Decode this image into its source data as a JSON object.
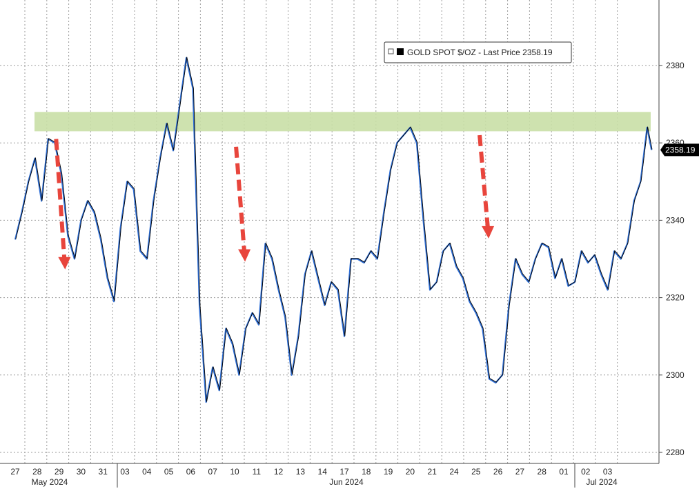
{
  "chart_data": {
    "type": "line",
    "title": "",
    "legend": {
      "label": "GOLD SPOT $/OZ - Last Price 2358.19",
      "position": "top-right"
    },
    "last_price": "2358.19",
    "colors": {
      "line_dark": "#000000",
      "line_blue": "#2f6fd6",
      "band": "#c9dfa6",
      "arrow": "#e8453c",
      "grid": "#9a9a9a"
    },
    "ylim": [
      2276,
      2400
    ],
    "y_ticks": [
      2280,
      2300,
      2320,
      2340,
      2360,
      2380
    ],
    "grid": "dotted",
    "x_tick_labels": [
      "27",
      "28",
      "29",
      "30",
      "31",
      "03",
      "04",
      "05",
      "06",
      "07",
      "10",
      "11",
      "12",
      "13",
      "14",
      "17",
      "18",
      "19",
      "20",
      "21",
      "24",
      "25",
      "26",
      "27",
      "28",
      "01",
      "02",
      "03"
    ],
    "x_month_labels": [
      "May 2024",
      "Jun 2024",
      "Jul 2024"
    ],
    "resistance_band": {
      "low": 2363,
      "high": 2368
    },
    "arrows": [
      {
        "from_day": 1.3,
        "from": 2361,
        "to": 2328
      },
      {
        "from_day": 9.5,
        "from": 2359,
        "to": 2330
      },
      {
        "from_day": 20.6,
        "from": 2362,
        "to": 2336
      }
    ],
    "series": [
      {
        "x_day": [
          0,
          0.3,
          0.6,
          0.9,
          1.2,
          1.5,
          1.8,
          2.1,
          2.4,
          2.7,
          3.0,
          3.3,
          3.6,
          3.9,
          4.2,
          4.5,
          4.8,
          5.1,
          5.4,
          5.7,
          6.0,
          6.3,
          6.6,
          6.9,
          7.2,
          7.5,
          7.8,
          8.1,
          8.4,
          8.7,
          9.0,
          9.3,
          9.6,
          9.9,
          10.2,
          10.5,
          10.8,
          11.1,
          11.4,
          11.7,
          12.0,
          12.3,
          12.6,
          12.9,
          13.2,
          13.5,
          13.8,
          14.1,
          14.4,
          14.7,
          15.0,
          15.3,
          15.6,
          15.9,
          16.2,
          16.5,
          16.8,
          17.1,
          17.4,
          17.7,
          18.0,
          18.3,
          18.6,
          18.9,
          19.2,
          19.5,
          19.8,
          20.1,
          20.4,
          20.7,
          21.0,
          21.3,
          21.6,
          21.9,
          22.2,
          22.5,
          22.8,
          23.1,
          23.4,
          23.7,
          24.0,
          24.3,
          24.6,
          24.9,
          25.2,
          25.5,
          25.8,
          26.1,
          26.4,
          26.7,
          27.0,
          27.3,
          27.6,
          27.9,
          28.2,
          28.5,
          28.8,
          29.0
        ],
        "values": [
          2335,
          2342,
          2350,
          2356,
          2345,
          2361,
          2360,
          2352,
          2336,
          2330,
          2340,
          2345,
          2342,
          2335,
          2325,
          2319,
          2338,
          2350,
          2348,
          2332,
          2330,
          2345,
          2356,
          2365,
          2358,
          2370,
          2382,
          2374,
          2318,
          2293,
          2302,
          2296,
          2312,
          2308,
          2300,
          2312,
          2316,
          2313,
          2334,
          2330,
          2322,
          2315,
          2300,
          2310,
          2326,
          2332,
          2325,
          2318,
          2324,
          2322,
          2310,
          2330,
          2330,
          2329,
          2332,
          2330,
          2342,
          2353,
          2360,
          2362,
          2364,
          2360,
          2340,
          2322,
          2324,
          2332,
          2334,
          2328,
          2325,
          2319,
          2316,
          2312,
          2299,
          2298,
          2300,
          2318,
          2330,
          2326,
          2324,
          2330,
          2334,
          2333,
          2325,
          2330,
          2323,
          2324,
          2332,
          2329,
          2331,
          2326,
          2322,
          2332,
          2330,
          2334,
          2345,
          2350,
          2364,
          2358.19
        ]
      }
    ]
  }
}
